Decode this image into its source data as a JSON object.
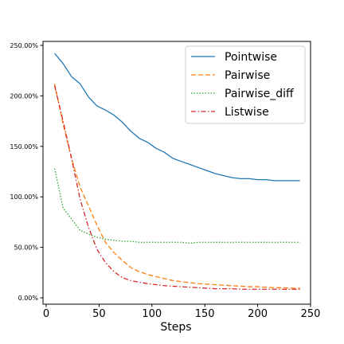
{
  "chart_data": {
    "type": "line",
    "xlabel": "Steps",
    "ylabel": "",
    "title": "",
    "xlim": [
      -3,
      250
    ],
    "ylim": [
      0,
      2.5
    ],
    "xticks": [
      0,
      50,
      100,
      150,
      200,
      250
    ],
    "xtick_labels": [
      "0",
      "50",
      "100",
      "150",
      "200",
      "250"
    ],
    "yticks": [
      0,
      0.5,
      1.0,
      1.5,
      2.0,
      2.5
    ],
    "ytick_labels": [
      "0.00%",
      "50.00%",
      "100.00%",
      "150.00%",
      "200.00%",
      "250.00%"
    ],
    "grid": false,
    "legend_position": "top-right",
    "series": [
      {
        "name": "Pointwise",
        "color": "#1f77b4",
        "style": "solid",
        "x": [
          8,
          16,
          24,
          32,
          40,
          48,
          56,
          64,
          72,
          80,
          88,
          96,
          104,
          112,
          120,
          128,
          136,
          144,
          152,
          160,
          168,
          176,
          184,
          192,
          200,
          208,
          216,
          224,
          232,
          240
        ],
        "y": [
          2.42,
          2.32,
          2.19,
          2.12,
          1.99,
          1.9,
          1.86,
          1.81,
          1.74,
          1.65,
          1.58,
          1.54,
          1.48,
          1.44,
          1.38,
          1.35,
          1.32,
          1.29,
          1.26,
          1.23,
          1.21,
          1.19,
          1.18,
          1.18,
          1.17,
          1.17,
          1.16,
          1.16,
          1.16,
          1.16
        ]
      },
      {
        "name": "Pairwise",
        "color": "#ff7f0e",
        "style": "dashed",
        "x": [
          8,
          16,
          24,
          32,
          40,
          48,
          56,
          64,
          72,
          80,
          88,
          96,
          104,
          112,
          120,
          128,
          136,
          144,
          152,
          160,
          168,
          176,
          184,
          192,
          200,
          208,
          216,
          224,
          232,
          240
        ],
        "y": [
          2.12,
          1.72,
          1.38,
          1.1,
          0.91,
          0.72,
          0.55,
          0.45,
          0.37,
          0.3,
          0.26,
          0.23,
          0.21,
          0.19,
          0.17,
          0.16,
          0.15,
          0.14,
          0.135,
          0.13,
          0.125,
          0.12,
          0.115,
          0.11,
          0.11,
          0.105,
          0.1,
          0.1,
          0.095,
          0.095
        ]
      },
      {
        "name": "Pairwise_diff",
        "color": "#2ca02c",
        "style": "dotted",
        "x": [
          8,
          16,
          24,
          32,
          40,
          48,
          56,
          64,
          72,
          80,
          88,
          96,
          104,
          112,
          120,
          128,
          136,
          144,
          152,
          160,
          168,
          176,
          184,
          192,
          200,
          208,
          216,
          224,
          232,
          240
        ],
        "y": [
          1.28,
          0.89,
          0.78,
          0.67,
          0.63,
          0.6,
          0.58,
          0.57,
          0.56,
          0.56,
          0.55,
          0.55,
          0.55,
          0.55,
          0.55,
          0.55,
          0.54,
          0.55,
          0.55,
          0.55,
          0.55,
          0.55,
          0.55,
          0.55,
          0.55,
          0.55,
          0.55,
          0.55,
          0.55,
          0.55
        ]
      },
      {
        "name": "Listwise",
        "color": "#d62728",
        "style": "dashdot",
        "x": [
          8,
          16,
          24,
          32,
          40,
          48,
          56,
          64,
          72,
          80,
          88,
          96,
          104,
          112,
          120,
          128,
          136,
          144,
          152,
          160,
          168,
          176,
          184,
          192,
          200,
          208,
          216,
          224,
          232,
          240
        ],
        "y": [
          2.1,
          1.75,
          1.38,
          0.98,
          0.7,
          0.48,
          0.35,
          0.26,
          0.2,
          0.17,
          0.155,
          0.14,
          0.13,
          0.12,
          0.115,
          0.11,
          0.105,
          0.1,
          0.095,
          0.09,
          0.09,
          0.09,
          0.085,
          0.085,
          0.085,
          0.085,
          0.085,
          0.085,
          0.085,
          0.085
        ]
      }
    ]
  }
}
